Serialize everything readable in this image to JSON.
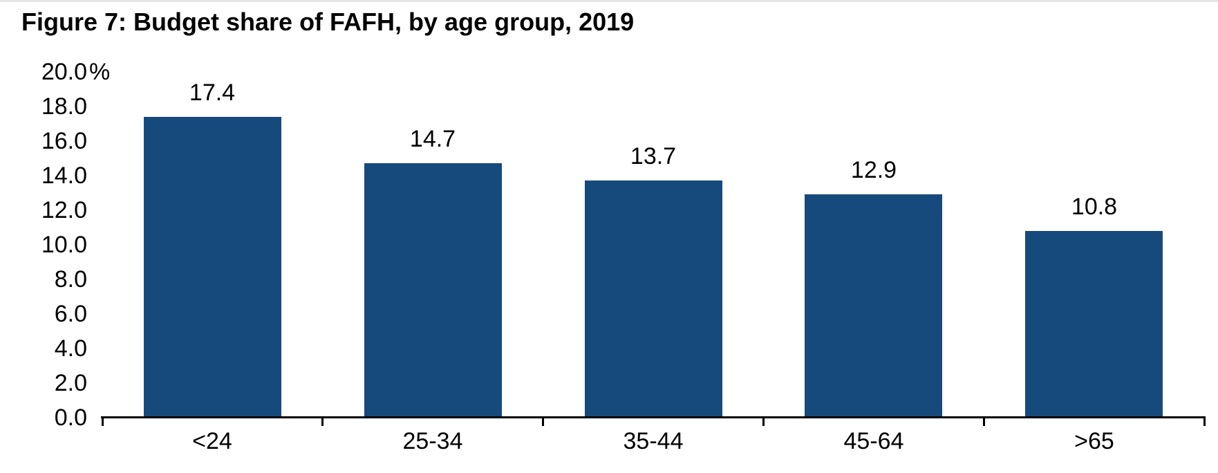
{
  "page": {
    "background": "#ffffff",
    "top_edge_color": "#e5e5e5"
  },
  "figure": {
    "title": "Figure 7: Budget share of FAFH, by age group, 2019"
  },
  "chart_data": {
    "type": "bar",
    "title": "Figure 7: Budget share of FAFH, by age group, 2019",
    "categories": [
      "<24",
      "25-34",
      "35-44",
      "45-64",
      ">65"
    ],
    "values": [
      17.4,
      14.7,
      13.7,
      12.9,
      10.8
    ],
    "bar_labels": [
      "17.4",
      "14.7",
      "13.7",
      "12.9",
      "10.8"
    ],
    "xlabel": "",
    "ylabel": "",
    "ylim": [
      0,
      20
    ],
    "y_axis": {
      "min": 0,
      "max": 20,
      "tick_step": 2,
      "tick_labels": [
        "0.0",
        "2.0",
        "4.0",
        "6.0",
        "8.0",
        "10.0",
        "12.0",
        "14.0",
        "16.0",
        "18.0",
        "20.0"
      ],
      "top_tick_suffix": "%"
    },
    "grid": false,
    "legend": null,
    "bar_color": "#174A7C",
    "axis_color": "#000000",
    "text_color": "#000000"
  }
}
